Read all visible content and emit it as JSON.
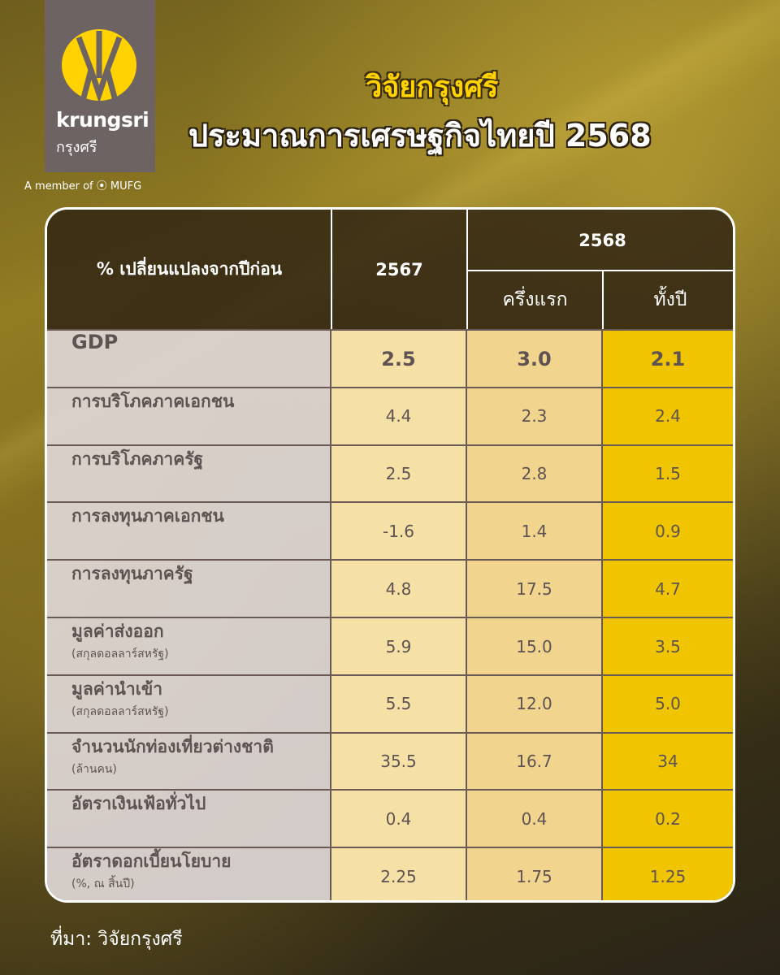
{
  "brand": {
    "name_en": "krungsri",
    "name_th": "กรุงศรี",
    "member": "A member of ⦿ MUFG",
    "logo_color": "#ffd200"
  },
  "title": {
    "line1": "วิจัยกรุงศรี",
    "line2": "ประมาณการเศรษฐกิจไทยปี 2568"
  },
  "table": {
    "header": {
      "label": "% เปลี่ยนแปลงจากปีก่อน",
      "col_2567": "2567",
      "group_2568": "2568",
      "col_h1": "ครึ่งแรก",
      "col_full": "ทั้งปี"
    },
    "rows": [
      {
        "label": "GDP",
        "sub": "",
        "v2567": "2.5",
        "h1": "3.0",
        "full": "2.1"
      },
      {
        "label": "การบริโภคภาคเอกชน",
        "sub": "",
        "v2567": "4.4",
        "h1": "2.3",
        "full": "2.4"
      },
      {
        "label": "การบริโภคภาครัฐ",
        "sub": "",
        "v2567": "2.5",
        "h1": "2.8",
        "full": "1.5"
      },
      {
        "label": "การลงทุนภาคเอกชน",
        "sub": "",
        "v2567": "-1.6",
        "h1": "1.4",
        "full": "0.9"
      },
      {
        "label": "การลงทุนภาครัฐ",
        "sub": "",
        "v2567": "4.8",
        "h1": "17.5",
        "full": "4.7"
      },
      {
        "label": "มูลค่าส่งออก",
        "sub": "(สกุลดอลลาร์สหรัฐ)",
        "v2567": "5.9",
        "h1": "15.0",
        "full": "3.5"
      },
      {
        "label": "มูลค่านำเข้า",
        "sub": "(สกุลดอลลาร์สหรัฐ)",
        "v2567": "5.5",
        "h1": "12.0",
        "full": "5.0"
      },
      {
        "label": "จำนวนนักท่องเที่ยวต่างชาติ",
        "sub": "(ล้านคน)",
        "v2567": "35.5",
        "h1": "16.7",
        "full": "34"
      },
      {
        "label": "อัตราเงินเฟ้อทั่วไป",
        "sub": "",
        "v2567": "0.4",
        "h1": "0.4",
        "full": "0.2"
      },
      {
        "label": "อัตราดอกเบี้ยนโยบาย",
        "sub": "(%, ณ สิ้นปี)",
        "v2567": "2.25",
        "h1": "1.75",
        "full": "1.25"
      }
    ]
  },
  "source": "ที่มา: วิจัยกรุงศรี"
}
